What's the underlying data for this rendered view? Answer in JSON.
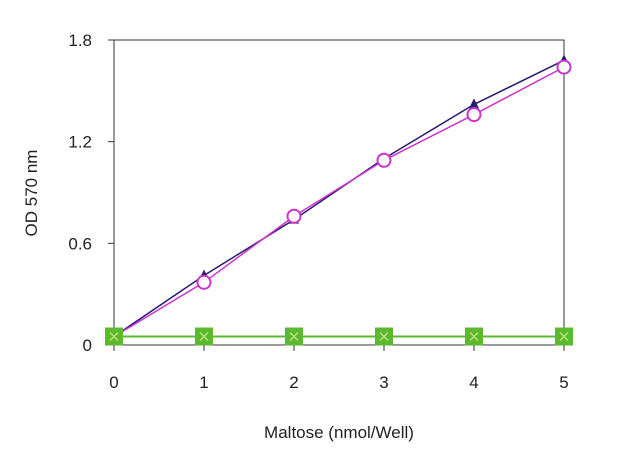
{
  "chart_data": {
    "type": "line",
    "title": "",
    "xlabel": "Maltose (nmol/Well)",
    "ylabel": "OD 570 nm",
    "xlim": [
      0,
      5
    ],
    "ylim": [
      0,
      1.8
    ],
    "xticks": [
      "0",
      "1",
      "2",
      "3",
      "4",
      "5"
    ],
    "yticks": [
      "0",
      "0.6",
      "1.2",
      "1.8"
    ],
    "grid": false,
    "x": [
      0,
      1,
      2,
      3,
      4,
      5
    ],
    "series": [
      {
        "name": "triangle-series",
        "color": "#2a1a6e",
        "marker": "triangle",
        "values": [
          0.05,
          0.41,
          0.74,
          1.1,
          1.42,
          1.68
        ]
      },
      {
        "name": "circle-series",
        "color": "#cc33cc",
        "marker": "circle",
        "values": [
          0.05,
          0.37,
          0.76,
          1.09,
          1.36,
          1.64
        ]
      },
      {
        "name": "square-series",
        "color": "#5cb82e",
        "marker": "square-x",
        "values": [
          0.05,
          0.05,
          0.05,
          0.05,
          0.05,
          0.05
        ]
      }
    ]
  }
}
